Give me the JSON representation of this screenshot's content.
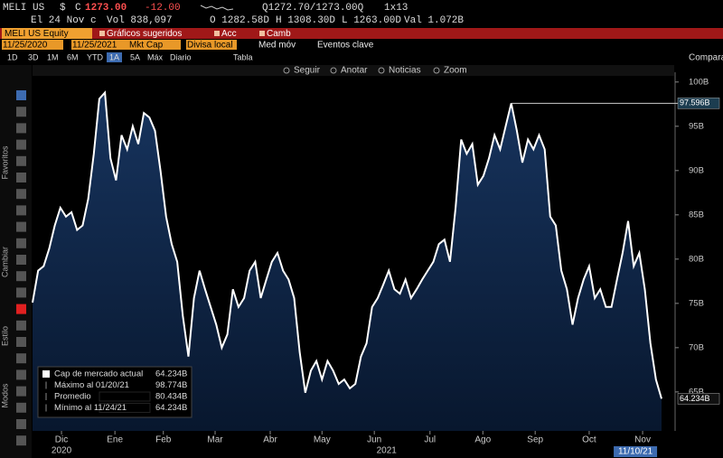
{
  "header": {
    "ticker": "MELI US",
    "currency": "$",
    "flag": "C",
    "price": "1273.00",
    "change": "-12.00",
    "quote": "Q1272.70/1273.00Q",
    "size": "1x13",
    "date": "El 24 Nov c",
    "volume": "Vol 838,097",
    "open": "O 1282.58D",
    "high": "H 1308.30D",
    "low": "L 1263.00D",
    "value": "Val 1.072B"
  },
  "menu": {
    "security": "MELI US Equity",
    "items": [
      "Gráficos sugeridos",
      "Acc",
      "Camb"
    ]
  },
  "settings": [
    "11/25/2020",
    "11/25/2021",
    "Mkt Cap",
    "Divisa local",
    "Med móv",
    "Eventos clave"
  ],
  "ranges": [
    "1D",
    "3D",
    "1M",
    "6M",
    "YTD",
    "1A",
    "5A",
    "Máx",
    "Diario",
    "Tabla"
  ],
  "compare": "Comparar",
  "toolbar": [
    "Seguir",
    "Anotar",
    "Noticias",
    "Zoom"
  ],
  "sidebar": [
    "Favoritos",
    "Cambiar",
    "Estilo",
    "Modos"
  ],
  "chart_data": {
    "type": "area",
    "series": [
      {
        "name": "Cap de mercado actual",
        "color": "#ffffff",
        "fill": "#0e274b",
        "values": [
          75.1,
          78.7,
          79.2,
          81.2,
          83.8,
          85.8,
          84.8,
          85.3,
          83.3,
          83.8,
          86.8,
          91.9,
          98.1,
          98.8,
          91.4,
          88.9,
          94.0,
          92.4,
          95.0,
          93.0,
          96.5,
          96.0,
          94.5,
          89.9,
          84.8,
          81.7,
          79.7,
          73.6,
          69.0,
          75.6,
          78.7,
          76.6,
          74.6,
          72.6,
          70.0,
          71.5,
          76.6,
          74.6,
          75.6,
          78.7,
          79.7,
          75.6,
          77.7,
          79.7,
          80.7,
          78.7,
          77.7,
          75.6,
          69.5,
          64.9,
          67.4,
          68.5,
          66.4,
          68.5,
          67.4,
          65.9,
          66.4,
          65.4,
          65.9,
          69.0,
          70.5,
          74.6,
          75.6,
          77.1,
          78.7,
          76.6,
          76.1,
          77.7,
          75.6,
          76.6,
          77.7,
          78.7,
          79.7,
          81.7,
          82.2,
          79.7,
          85.8,
          93.5,
          91.9,
          93.0,
          88.4,
          89.4,
          91.4,
          94.0,
          92.4,
          95.0,
          97.6,
          94.5,
          90.9,
          93.5,
          92.4,
          94.0,
          92.4,
          84.8,
          83.8,
          78.7,
          76.6,
          72.6,
          75.6,
          77.7,
          79.2,
          75.6,
          76.6,
          74.6,
          74.6,
          77.7,
          80.7,
          84.3,
          79.2,
          80.7,
          76.6,
          70.5,
          66.4,
          64.234
        ]
      }
    ],
    "xlim": [
      0,
      113
    ],
    "xticks": [
      {
        "value": 5.2,
        "label": "Dic"
      },
      {
        "value": 14.8,
        "label": "Ene"
      },
      {
        "value": 23.5,
        "label": "Feb"
      },
      {
        "value": 32.8,
        "label": "Mar"
      },
      {
        "value": 42.7,
        "label": "Abr"
      },
      {
        "value": 52.0,
        "label": "May"
      },
      {
        "value": 61.4,
        "label": "Jun"
      },
      {
        "value": 71.4,
        "label": "Jul"
      },
      {
        "value": 80.9,
        "label": "Ago"
      },
      {
        "value": 90.3,
        "label": "Sep"
      },
      {
        "value": 100.0,
        "label": "Oct"
      },
      {
        "value": 109.6,
        "label": "Nov"
      }
    ],
    "year_ticks": [
      {
        "value": 5.2,
        "label": "2020"
      },
      {
        "value": 63.6,
        "label": "2021"
      }
    ],
    "ylim": [
      60.6,
      101.1
    ],
    "yticks": [
      {
        "value": 65,
        "label": "65B"
      },
      {
        "value": 70,
        "label": "70B"
      },
      {
        "value": 75,
        "label": "75B"
      },
      {
        "value": 80,
        "label": "80B"
      },
      {
        "value": 85,
        "label": "85B"
      },
      {
        "value": 90,
        "label": "90B"
      },
      {
        "value": 95,
        "label": "95B"
      },
      {
        "value": 100,
        "label": "100B"
      }
    ],
    "annotations": [
      {
        "value": 97.596,
        "label": "97.596B",
        "x": 86
      },
      {
        "value": 64.234,
        "label": "64.234B"
      }
    ],
    "date_marker": {
      "x": 108.3,
      "label": "11/10/21"
    },
    "legend": [
      {
        "label": "Cap de mercado actual",
        "value": "64.234B"
      },
      {
        "label": "Máximo al 01/20/21",
        "value": "98.774B"
      },
      {
        "label": "Promedio",
        "value": "80.434B"
      },
      {
        "label": "Mínimo al 11/24/21",
        "value": "64.234B"
      }
    ]
  }
}
